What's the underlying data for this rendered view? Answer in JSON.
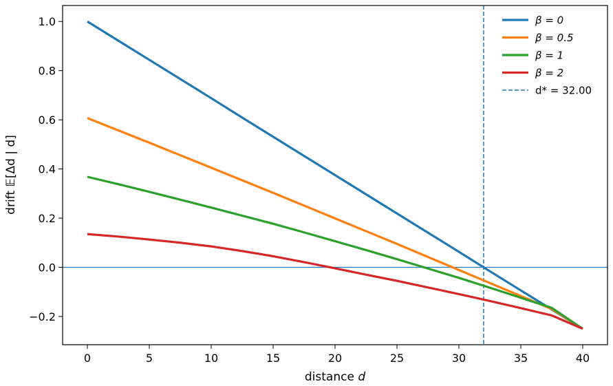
{
  "chart_data": {
    "type": "line",
    "xlabel_prefix": "distance ",
    "xlabel_var": "d",
    "ylabel": "drift 𝔼[Δd | d]",
    "xlim": [
      -2,
      42
    ],
    "ylim": [
      -0.315,
      1.065
    ],
    "x_ticks": [
      0,
      5,
      10,
      15,
      20,
      25,
      30,
      35,
      40
    ],
    "y_ticks": [
      -0.2,
      0.0,
      0.2,
      0.4,
      0.6,
      0.8,
      1.0
    ],
    "y_tick_labels": [
      "−0.2",
      "0.0",
      "0.2",
      "0.4",
      "0.6",
      "0.8",
      "1.0"
    ],
    "grid": false,
    "legend_position": "top-right",
    "x": [
      0,
      2.5,
      5,
      7.5,
      10,
      12.5,
      15,
      17.5,
      20,
      22.5,
      25,
      27.5,
      30,
      32.5,
      35,
      37.5,
      40
    ],
    "series": [
      {
        "name": "β = 0",
        "color": "#1f77b4",
        "values": [
          1.0,
          0.922,
          0.844,
          0.766,
          0.688,
          0.609,
          0.531,
          0.453,
          0.375,
          0.297,
          0.219,
          0.141,
          0.063,
          -0.016,
          -0.094,
          -0.172,
          -0.25
        ]
      },
      {
        "name": "β = 0.5",
        "color": "#ff7f0e",
        "values": [
          0.607,
          0.557,
          0.507,
          0.456,
          0.405,
          0.354,
          0.303,
          0.251,
          0.199,
          0.147,
          0.095,
          0.042,
          -0.011,
          -0.064,
          -0.117,
          -0.17,
          -0.25
        ]
      },
      {
        "name": "β = 1",
        "color": "#2ca02c",
        "values": [
          0.368,
          0.338,
          0.307,
          0.275,
          0.243,
          0.21,
          0.177,
          0.142,
          0.106,
          0.07,
          0.033,
          -0.005,
          -0.043,
          -0.083,
          -0.124,
          -0.165,
          -0.25
        ]
      },
      {
        "name": "β = 2",
        "color": "#d62728",
        "values": [
          0.135,
          0.125,
          0.113,
          0.1,
          0.085,
          0.066,
          0.045,
          0.021,
          -0.004,
          -0.03,
          -0.055,
          -0.082,
          -0.109,
          -0.137,
          -0.166,
          -0.196,
          -0.25
        ]
      }
    ],
    "reference_lines": [
      {
        "orientation": "horizontal",
        "value": 0.0,
        "color": "#1f77b4",
        "style": "solid"
      },
      {
        "orientation": "vertical",
        "value": 32.0,
        "color": "#1f77b4",
        "style": "dashed",
        "label": "d* = 32.00"
      }
    ]
  }
}
